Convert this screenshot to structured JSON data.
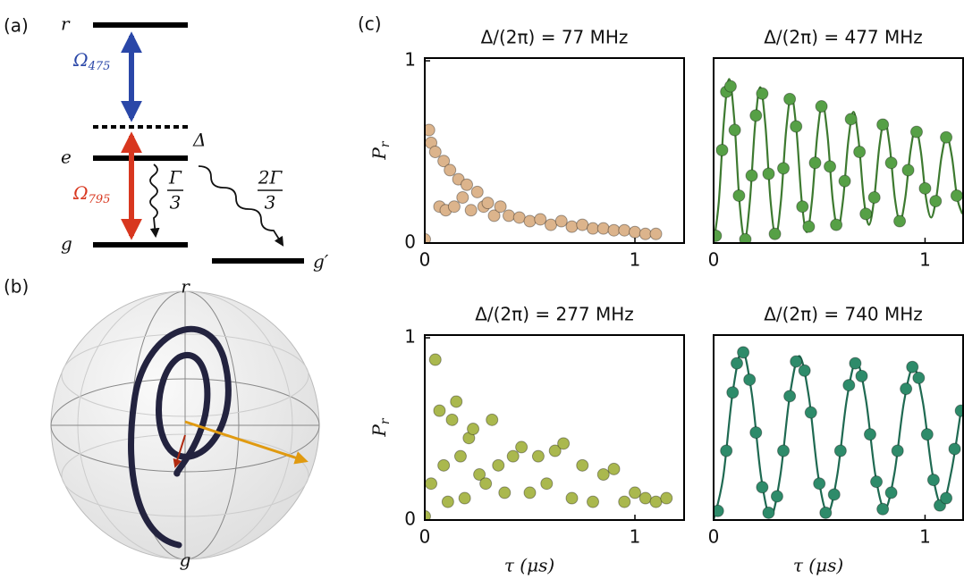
{
  "panel_labels": [
    "(a)",
    "(b)",
    "(c)"
  ],
  "levels": {
    "r": "r",
    "e": "e",
    "g": "g",
    "g_prime": "g′",
    "delta": "Δ",
    "omega_blue": {
      "symbol": "Ω",
      "subscript": "475"
    },
    "omega_red": {
      "symbol": "Ω",
      "subscript": "795"
    },
    "decay_e_g": {
      "numerator": "Γ",
      "denominator": "3"
    },
    "decay_e_gp": {
      "numerator": "2Γ",
      "denominator": "3"
    }
  },
  "bloch": {
    "top": "r",
    "bottom": "g"
  },
  "chart_data": [
    {
      "type": "scatter",
      "title": "Δ/(2π) = 77 MHz",
      "xlim": [
        0,
        1.234
      ],
      "ylim": [
        0,
        1.015
      ],
      "xticks": [
        0,
        1
      ],
      "yticks": [
        0,
        1
      ],
      "ylabel": {
        "symbol": "P",
        "subscript": "r"
      },
      "series": [
        {
          "type": "points",
          "color": "#dcb48c",
          "x": [
            0.0,
            0.02,
            0.03,
            0.05,
            0.07,
            0.09,
            0.1,
            0.12,
            0.14,
            0.16,
            0.18,
            0.2,
            0.22,
            0.25,
            0.28,
            0.3,
            0.33,
            0.36,
            0.4,
            0.45,
            0.5,
            0.55,
            0.6,
            0.65,
            0.7,
            0.75,
            0.8,
            0.85,
            0.9,
            0.95,
            1.0,
            1.05,
            1.1
          ],
          "values": [
            0.02,
            0.62,
            0.55,
            0.5,
            0.2,
            0.45,
            0.18,
            0.4,
            0.2,
            0.35,
            0.25,
            0.32,
            0.18,
            0.28,
            0.2,
            0.22,
            0.15,
            0.2,
            0.15,
            0.14,
            0.12,
            0.13,
            0.1,
            0.12,
            0.09,
            0.1,
            0.08,
            0.08,
            0.07,
            0.07,
            0.06,
            0.05,
            0.05
          ]
        }
      ]
    },
    {
      "type": "scatter",
      "title": "Δ/(2π) = 477 MHz",
      "xlim": [
        0,
        1.18
      ],
      "ylim": [
        0,
        1.015
      ],
      "xticks": [
        0,
        1
      ],
      "series": [
        {
          "type": "line",
          "color": "#3d7a30",
          "x": [
            0,
            0.0245,
            0.049,
            0.0735,
            0.098,
            0.1225,
            0.147,
            0.1715,
            0.196,
            0.2205,
            0.245,
            0.2695,
            0.294,
            0.3185,
            0.343,
            0.3675,
            0.392,
            0.4165,
            0.441,
            0.4655,
            0.49,
            0.5145,
            0.539,
            0.5635,
            0.588,
            0.6125,
            0.637,
            0.6615,
            0.686,
            0.7105,
            0.735,
            0.7595,
            0.784,
            0.8085,
            0.833,
            0.8575,
            0.882,
            0.9065,
            0.931,
            0.9555,
            0.98,
            1.0045,
            1.029,
            1.0535,
            1.078,
            1.1025,
            1.127,
            1.1515,
            1.176
          ],
          "values": [
            0,
            0.225,
            0.675,
            0.9,
            0.675,
            0.225,
            0.02,
            0.229,
            0.646,
            0.855,
            0.646,
            0.229,
            0.04,
            0.233,
            0.618,
            0.81,
            0.618,
            0.233,
            0.06,
            0.236,
            0.589,
            0.765,
            0.589,
            0.236,
            0.08,
            0.24,
            0.56,
            0.72,
            0.56,
            0.24,
            0.1,
            0.244,
            0.531,
            0.675,
            0.531,
            0.244,
            0.12,
            0.248,
            0.503,
            0.63,
            0.503,
            0.248,
            0.14,
            0.251,
            0.474,
            0.585,
            0.474,
            0.251,
            0.16
          ]
        },
        {
          "type": "points",
          "color": "#56a046",
          "x": [
            0.01,
            0.04,
            0.06,
            0.08,
            0.1,
            0.12,
            0.15,
            0.18,
            0.2,
            0.23,
            0.26,
            0.29,
            0.33,
            0.36,
            0.39,
            0.42,
            0.45,
            0.48,
            0.51,
            0.55,
            0.58,
            0.62,
            0.65,
            0.69,
            0.72,
            0.76,
            0.8,
            0.84,
            0.88,
            0.92,
            0.96,
            1.0,
            1.05,
            1.1,
            1.15
          ],
          "values": [
            0.04,
            0.51,
            0.83,
            0.86,
            0.62,
            0.26,
            0.02,
            0.37,
            0.7,
            0.82,
            0.38,
            0.05,
            0.41,
            0.79,
            0.64,
            0.2,
            0.09,
            0.44,
            0.75,
            0.42,
            0.1,
            0.34,
            0.68,
            0.5,
            0.16,
            0.25,
            0.65,
            0.44,
            0.12,
            0.4,
            0.61,
            0.3,
            0.23,
            0.58,
            0.26
          ]
        }
      ]
    },
    {
      "type": "scatter",
      "title": "Δ/(2π) = 277 MHz",
      "xlim": [
        0,
        1.234
      ],
      "ylim": [
        0,
        1.015
      ],
      "xticks": [
        0,
        1
      ],
      "yticks": [
        0,
        1
      ],
      "xlabel": "τ (μs)",
      "ylabel": {
        "symbol": "P",
        "subscript": "r"
      },
      "series": [
        {
          "type": "points",
          "color": "#aab84e",
          "x": [
            0.0,
            0.03,
            0.05,
            0.07,
            0.09,
            0.11,
            0.13,
            0.15,
            0.17,
            0.19,
            0.21,
            0.23,
            0.26,
            0.29,
            0.32,
            0.35,
            0.38,
            0.42,
            0.46,
            0.5,
            0.54,
            0.58,
            0.62,
            0.66,
            0.7,
            0.75,
            0.8,
            0.85,
            0.9,
            0.95,
            1.0,
            1.05,
            1.1,
            1.15
          ],
          "values": [
            0.02,
            0.2,
            0.88,
            0.6,
            0.3,
            0.1,
            0.55,
            0.65,
            0.35,
            0.12,
            0.45,
            0.5,
            0.25,
            0.2,
            0.55,
            0.3,
            0.15,
            0.35,
            0.4,
            0.15,
            0.35,
            0.2,
            0.38,
            0.42,
            0.12,
            0.3,
            0.1,
            0.25,
            0.28,
            0.1,
            0.15,
            0.12,
            0.1,
            0.12
          ]
        }
      ]
    },
    {
      "type": "scatter",
      "title": "Δ/(2π) = 740 MHz",
      "xlim": [
        0,
        1.18
      ],
      "ylim": [
        0,
        1.015
      ],
      "xticks": [
        0,
        1
      ],
      "xlabel": "τ (μs)",
      "series": [
        {
          "type": "line",
          "color": "#1f6a52",
          "x": [
            0,
            0.045,
            0.09,
            0.135,
            0.18,
            0.225,
            0.27,
            0.315,
            0.36,
            0.405,
            0.45,
            0.495,
            0.54,
            0.585,
            0.63,
            0.675,
            0.72,
            0.765,
            0.81,
            0.855,
            0.9,
            0.945,
            0.99,
            1.035,
            1.08,
            1.125,
            1.17
          ],
          "values": [
            0,
            0.233,
            0.698,
            0.93,
            0.698,
            0.233,
            0.02,
            0.24,
            0.68,
            0.9,
            0.68,
            0.24,
            0.04,
            0.248,
            0.663,
            0.87,
            0.663,
            0.248,
            0.06,
            0.255,
            0.645,
            0.84,
            0.645,
            0.255,
            0.08,
            0.27,
            0.6
          ]
        },
        {
          "type": "points",
          "color": "#2e8b6a",
          "x": [
            0.02,
            0.06,
            0.09,
            0.11,
            0.14,
            0.17,
            0.2,
            0.23,
            0.26,
            0.3,
            0.33,
            0.36,
            0.39,
            0.43,
            0.46,
            0.5,
            0.53,
            0.57,
            0.6,
            0.64,
            0.67,
            0.7,
            0.74,
            0.77,
            0.8,
            0.84,
            0.87,
            0.91,
            0.94,
            0.97,
            1.01,
            1.04,
            1.07,
            1.1,
            1.14,
            1.17
          ],
          "values": [
            0.05,
            0.38,
            0.7,
            0.86,
            0.92,
            0.77,
            0.48,
            0.18,
            0.04,
            0.13,
            0.38,
            0.68,
            0.87,
            0.82,
            0.59,
            0.2,
            0.04,
            0.14,
            0.38,
            0.74,
            0.86,
            0.79,
            0.47,
            0.21,
            0.06,
            0.15,
            0.38,
            0.72,
            0.84,
            0.78,
            0.47,
            0.22,
            0.08,
            0.12,
            0.39,
            0.6
          ]
        }
      ]
    }
  ]
}
